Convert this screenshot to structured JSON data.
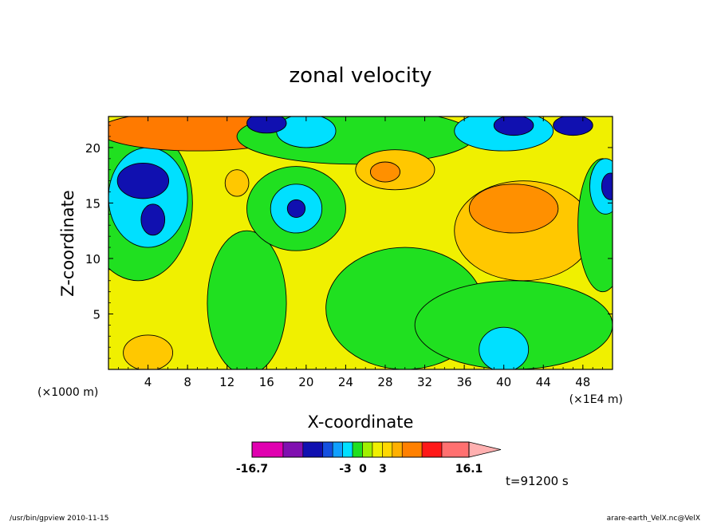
{
  "chart_data": {
    "type": "heatmap",
    "title": "zonal velocity",
    "xlabel": "X-coordinate",
    "ylabel": "Z-coordinate",
    "x_unit_left": "(×1000 m)",
    "x_unit_right": "(×1E4 m)",
    "xlim": [
      0,
      51
    ],
    "ylim": [
      0,
      22.8
    ],
    "x_ticks": [
      "4",
      "8",
      "12",
      "16",
      "20",
      "24",
      "28",
      "32",
      "36",
      "40",
      "44",
      "48"
    ],
    "y_ticks": [
      "5",
      "10",
      "15",
      "20"
    ],
    "colorbar": {
      "min_label": "-16.7",
      "max_label": "16.1",
      "labels": [
        "-3",
        "0",
        "3"
      ],
      "colors": [
        "#e000b0",
        "#8010b0",
        "#1010b0",
        "#1450e0",
        "#10a0ff",
        "#00e0ff",
        "#20e020",
        "#a0f000",
        "#f0f000",
        "#ffd800",
        "#ffb000",
        "#ff8000",
        "#ff1818",
        "#ff7070",
        "#ffb0b0"
      ],
      "steps": [
        -16.7,
        -12,
        -9,
        -6,
        -4.5,
        -3,
        -1.5,
        0,
        1.5,
        3,
        4.5,
        6,
        9,
        12,
        16.1
      ]
    },
    "regions": [
      {
        "level": "green",
        "cx": 3,
        "cy": 15,
        "rx": 5.5,
        "ry": 7
      },
      {
        "level": "cyan",
        "cx": 4,
        "cy": 15.5,
        "rx": 4,
        "ry": 4.5
      },
      {
        "level": "blue",
        "cx": 3.5,
        "cy": 17,
        "rx": 2.6,
        "ry": 1.6
      },
      {
        "level": "blue",
        "cx": 4.5,
        "cy": 13.5,
        "rx": 1.2,
        "ry": 1.4
      },
      {
        "level": "orange",
        "cx": 9,
        "cy": 21.5,
        "rx": 10,
        "ry": 1.8
      },
      {
        "level": "green",
        "cx": 14,
        "cy": 6,
        "rx": 4,
        "ry": 6.5
      },
      {
        "level": "green",
        "cx": 19,
        "cy": 14.5,
        "rx": 5,
        "ry": 3.8
      },
      {
        "level": "cyan",
        "cx": 19,
        "cy": 14.5,
        "rx": 2.6,
        "ry": 2.2
      },
      {
        "level": "blue",
        "cx": 19,
        "cy": 14.5,
        "rx": 0.9,
        "ry": 0.8
      },
      {
        "level": "green",
        "cx": 30,
        "cy": 5.5,
        "rx": 8,
        "ry": 5.5
      },
      {
        "level": "green",
        "cx": 41,
        "cy": 4,
        "rx": 10,
        "ry": 4
      },
      {
        "level": "cyan",
        "cx": 40,
        "cy": 1.8,
        "rx": 2.5,
        "ry": 2
      },
      {
        "level": "green",
        "cx": 25,
        "cy": 21,
        "rx": 12,
        "ry": 2.5
      },
      {
        "level": "cyan",
        "cx": 20,
        "cy": 21.5,
        "rx": 3,
        "ry": 1.5
      },
      {
        "level": "blue",
        "cx": 16,
        "cy": 22.2,
        "rx": 2,
        "ry": 0.9
      },
      {
        "level": "cyan",
        "cx": 40,
        "cy": 21.5,
        "rx": 5,
        "ry": 1.8
      },
      {
        "level": "blue",
        "cx": 41,
        "cy": 22,
        "rx": 2,
        "ry": 0.9
      },
      {
        "level": "blue",
        "cx": 47,
        "cy": 22,
        "rx": 2,
        "ry": 0.9
      },
      {
        "level": "orange-l",
        "cx": 42,
        "cy": 12.5,
        "rx": 7,
        "ry": 4.5
      },
      {
        "level": "orange-d",
        "cx": 41,
        "cy": 14.5,
        "rx": 4.5,
        "ry": 2.2
      },
      {
        "level": "orange-l",
        "cx": 29,
        "cy": 18,
        "rx": 4,
        "ry": 1.8
      },
      {
        "level": "orange-d",
        "cx": 28,
        "cy": 17.8,
        "rx": 1.5,
        "ry": 0.9
      },
      {
        "level": "orange-l",
        "cx": 13,
        "cy": 16.8,
        "rx": 1.2,
        "ry": 1.2
      },
      {
        "level": "orange-l",
        "cx": 4,
        "cy": 1.5,
        "rx": 2.5,
        "ry": 1.6
      },
      {
        "level": "green",
        "cx": 50,
        "cy": 13,
        "rx": 2.5,
        "ry": 6
      },
      {
        "level": "cyan",
        "cx": 50.3,
        "cy": 16.5,
        "rx": 1.6,
        "ry": 2.5
      },
      {
        "level": "blue",
        "cx": 50.8,
        "cy": 16.5,
        "rx": 0.9,
        "ry": 1.2
      }
    ]
  },
  "annotations": {
    "time": "t=91200 s",
    "footer_left": "/usr/bin/gpview   2010-11-15",
    "footer_right": "arare-earth_VelX.nc@VelX"
  }
}
